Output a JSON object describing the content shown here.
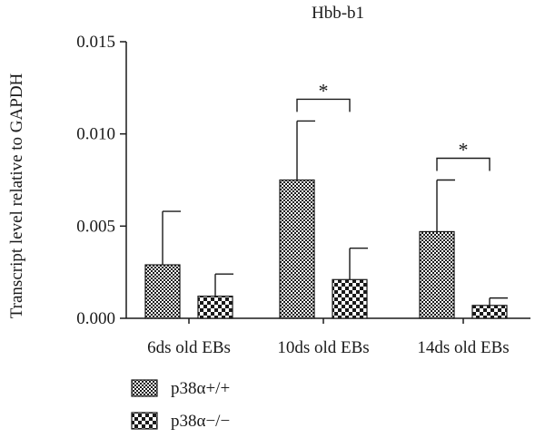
{
  "chart_data": {
    "type": "bar",
    "title": "Hbb-b1",
    "ylabel": "Transcript level relative to GAPDH",
    "xlabel": "",
    "ylim": [
      0,
      0.015
    ],
    "yticks": [
      {
        "value": 0.0,
        "label": "0.000"
      },
      {
        "value": 0.005,
        "label": "0.005"
      },
      {
        "value": 0.01,
        "label": "0.010"
      },
      {
        "value": 0.015,
        "label": "0.015"
      }
    ],
    "categories": [
      "6ds old EBs",
      "10ds old EBs",
      "14ds old EBs"
    ],
    "series": [
      {
        "name": "p38α+/+",
        "pattern": "fine-checker",
        "values": [
          0.0029,
          0.0075,
          0.0047
        ],
        "errors": [
          0.0029,
          0.0032,
          0.0028
        ]
      },
      {
        "name": "p38α−/−",
        "pattern": "coarse-checker",
        "values": [
          0.0012,
          0.0021,
          0.0007
        ],
        "errors": [
          0.0012,
          0.0017,
          0.0004
        ]
      }
    ],
    "significance": [
      {
        "category": "10ds old EBs",
        "label": "*"
      },
      {
        "category": "14ds old EBs",
        "label": "*"
      }
    ],
    "legend_position": "bottom-left",
    "grid": false,
    "colors": {
      "ink": "#1a1a1a",
      "background": "#ffffff"
    }
  }
}
